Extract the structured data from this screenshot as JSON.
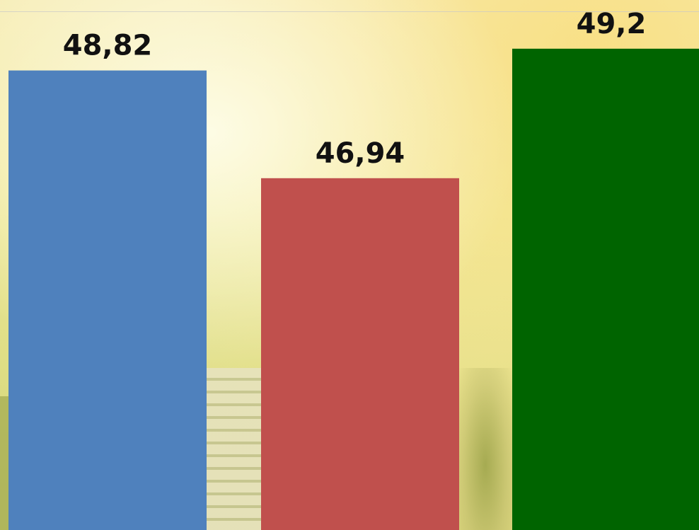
{
  "chart_data": {
    "type": "bar",
    "categories": [
      "",
      "",
      ""
    ],
    "values": [
      48.82,
      46.94,
      49.2
    ],
    "value_labels": [
      "48,82",
      "46,94",
      "49,2"
    ],
    "bar_colors": [
      "#4f81bd",
      "#c0504d",
      "#006400"
    ],
    "title": "",
    "xlabel": "",
    "ylabel": "",
    "ylim": [
      40.8,
      50.05
    ],
    "grid": false,
    "legend": "none"
  }
}
